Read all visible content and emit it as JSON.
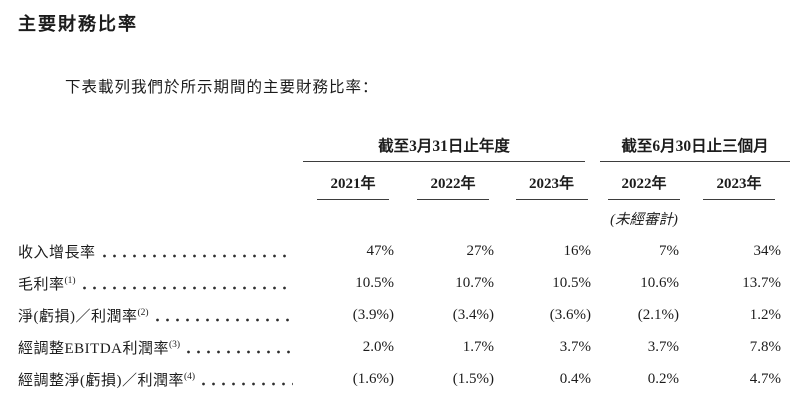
{
  "title": "主要財務比率",
  "intro": "下表載列我們於所示期間的主要財務比率：",
  "table": {
    "groups": [
      {
        "label": "截至3月31日止年度"
      },
      {
        "label": "截至6月30日止三個月"
      }
    ],
    "columns": [
      "2021年",
      "2022年",
      "2023年",
      "2022年",
      "2023年"
    ],
    "unaudited_note": "(未經審計)",
    "rows": [
      {
        "label": "收入增長率",
        "sup": "",
        "values": [
          "47%",
          "27%",
          "16%",
          "7%",
          "34%"
        ]
      },
      {
        "label": "毛利率",
        "sup": "(1)",
        "values": [
          "10.5%",
          "10.7%",
          "10.5%",
          "10.6%",
          "13.7%"
        ]
      },
      {
        "label": "淨(虧損)／利潤率",
        "sup": "(2)",
        "values": [
          "(3.9%)",
          "(3.4%)",
          "(3.6%)",
          "(2.1%)",
          "1.2%"
        ]
      },
      {
        "label": "經調整EBITDA利潤率",
        "sup": "(3)",
        "values": [
          "2.0%",
          "1.7%",
          "3.7%",
          "3.7%",
          "7.8%"
        ]
      },
      {
        "label": "經調整淨(虧損)／利潤率",
        "sup": "(4)",
        "values": [
          "(1.6%)",
          "(1.5%)",
          "0.4%",
          "0.2%",
          "4.7%"
        ]
      }
    ]
  }
}
